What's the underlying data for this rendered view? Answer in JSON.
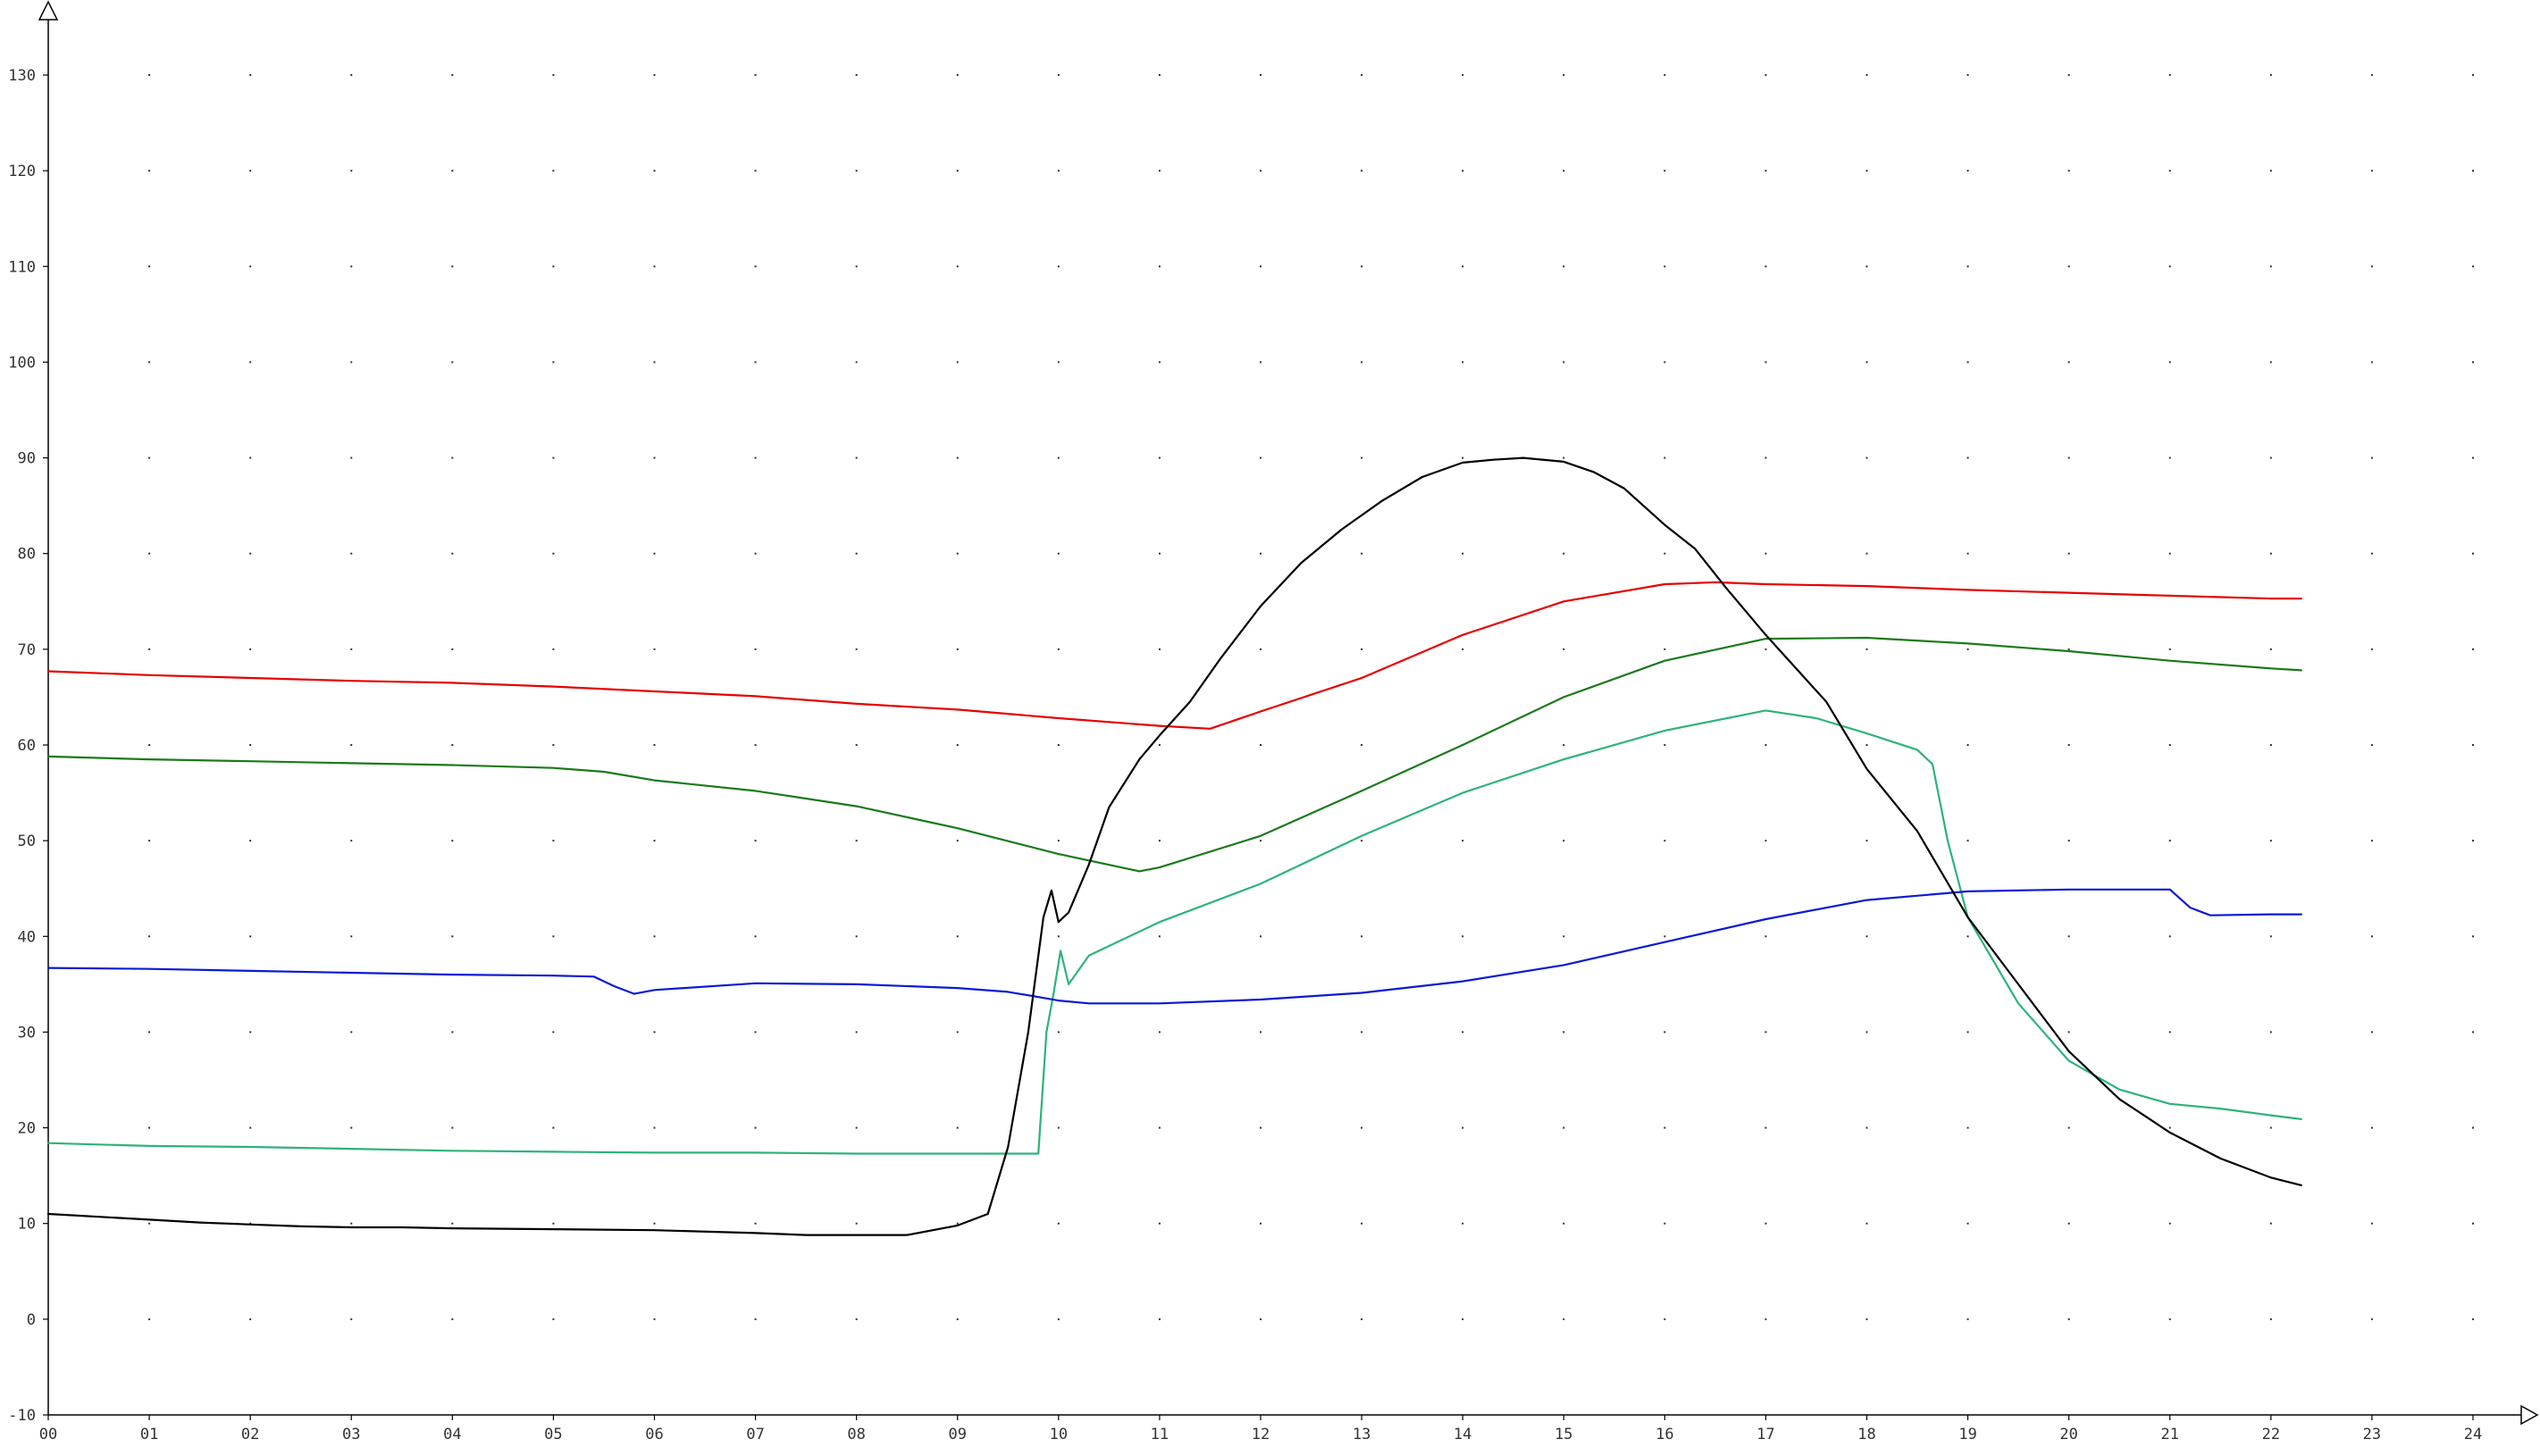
{
  "chart_data": {
    "type": "line",
    "title": "",
    "xlabel": "",
    "ylabel": "",
    "xlim": [
      0,
      24
    ],
    "ylim": [
      -10,
      130
    ],
    "grid": "dotted",
    "legend": "none",
    "x_ticks": [
      "00",
      "01",
      "02",
      "03",
      "04",
      "05",
      "06",
      "07",
      "08",
      "09",
      "10",
      "11",
      "12",
      "13",
      "14",
      "15",
      "16",
      "17",
      "18",
      "19",
      "20",
      "21",
      "22",
      "23",
      "24"
    ],
    "y_ticks": [
      "-10",
      "0",
      "10",
      "20",
      "30",
      "40",
      "50",
      "60",
      "70",
      "80",
      "90",
      "100",
      "110",
      "120",
      "130"
    ],
    "series": [
      {
        "color": "#e60000",
        "points": [
          [
            0,
            67.7
          ],
          [
            1,
            67.3
          ],
          [
            2,
            67.0
          ],
          [
            3,
            66.7
          ],
          [
            4,
            66.5
          ],
          [
            5,
            66.1
          ],
          [
            6,
            65.6
          ],
          [
            7,
            65.1
          ],
          [
            8,
            64.3
          ],
          [
            9,
            63.7
          ],
          [
            10,
            62.8
          ],
          [
            11,
            62.0
          ],
          [
            11.5,
            61.7
          ],
          [
            12,
            63.5
          ],
          [
            13,
            67.0
          ],
          [
            14,
            71.5
          ],
          [
            15,
            75.0
          ],
          [
            16,
            76.8
          ],
          [
            16.5,
            77.0
          ],
          [
            17,
            76.8
          ],
          [
            18,
            76.6
          ],
          [
            19,
            76.2
          ],
          [
            20,
            75.9
          ],
          [
            21,
            75.6
          ],
          [
            22,
            75.3
          ],
          [
            22.3,
            75.3
          ]
        ]
      },
      {
        "color": "#1a7a1a",
        "points": [
          [
            0,
            58.8
          ],
          [
            1,
            58.5
          ],
          [
            2,
            58.3
          ],
          [
            3,
            58.1
          ],
          [
            4,
            57.9
          ],
          [
            5,
            57.6
          ],
          [
            5.5,
            57.2
          ],
          [
            6,
            56.3
          ],
          [
            7,
            55.2
          ],
          [
            8,
            53.6
          ],
          [
            9,
            51.3
          ],
          [
            10,
            48.6
          ],
          [
            10.8,
            46.8
          ],
          [
            11,
            47.2
          ],
          [
            12,
            50.5
          ],
          [
            13,
            55.2
          ],
          [
            14,
            60.0
          ],
          [
            15,
            65.0
          ],
          [
            16,
            68.8
          ],
          [
            17,
            71.1
          ],
          [
            18,
            71.2
          ],
          [
            19,
            70.6
          ],
          [
            20,
            69.8
          ],
          [
            21,
            68.8
          ],
          [
            22,
            68.0
          ],
          [
            22.3,
            67.8
          ]
        ]
      },
      {
        "color": "#2db37a",
        "points": [
          [
            0,
            18.4
          ],
          [
            1,
            18.1
          ],
          [
            2,
            18.0
          ],
          [
            3,
            17.8
          ],
          [
            4,
            17.6
          ],
          [
            5,
            17.5
          ],
          [
            6,
            17.4
          ],
          [
            7,
            17.4
          ],
          [
            8,
            17.3
          ],
          [
            9,
            17.3
          ],
          [
            9.8,
            17.3
          ],
          [
            9.88,
            30.0
          ],
          [
            9.95,
            34.0
          ],
          [
            10.02,
            38.5
          ],
          [
            10.1,
            35.0
          ],
          [
            10.3,
            38.0
          ],
          [
            10.5,
            39.0
          ],
          [
            11,
            41.5
          ],
          [
            12,
            45.5
          ],
          [
            13,
            50.5
          ],
          [
            14,
            55.0
          ],
          [
            15,
            58.5
          ],
          [
            16,
            61.5
          ],
          [
            17,
            63.6
          ],
          [
            17.5,
            62.8
          ],
          [
            18,
            61.2
          ],
          [
            18.5,
            59.5
          ],
          [
            18.65,
            58.0
          ],
          [
            18.8,
            50.0
          ],
          [
            19,
            42.0
          ],
          [
            19.5,
            33.0
          ],
          [
            20,
            27.0
          ],
          [
            20.5,
            24.0
          ],
          [
            21,
            22.5
          ],
          [
            21.5,
            22.0
          ],
          [
            22,
            21.3
          ],
          [
            22.3,
            20.9
          ]
        ]
      },
      {
        "color": "#0a1ad6",
        "points": [
          [
            0,
            36.7
          ],
          [
            1,
            36.6
          ],
          [
            2,
            36.4
          ],
          [
            3,
            36.2
          ],
          [
            4,
            36.0
          ],
          [
            5,
            35.9
          ],
          [
            5.4,
            35.8
          ],
          [
            5.6,
            34.8
          ],
          [
            5.8,
            34.0
          ],
          [
            6,
            34.4
          ],
          [
            7,
            35.1
          ],
          [
            8,
            35.0
          ],
          [
            9,
            34.6
          ],
          [
            9.5,
            34.2
          ],
          [
            10,
            33.3
          ],
          [
            10.3,
            33.0
          ],
          [
            11,
            33.0
          ],
          [
            12,
            33.4
          ],
          [
            13,
            34.1
          ],
          [
            14,
            35.3
          ],
          [
            15,
            37.0
          ],
          [
            16,
            39.4
          ],
          [
            17,
            41.8
          ],
          [
            18,
            43.8
          ],
          [
            19,
            44.7
          ],
          [
            20,
            44.9
          ],
          [
            21,
            44.9
          ],
          [
            21.2,
            43.0
          ],
          [
            21.4,
            42.2
          ],
          [
            22,
            42.3
          ],
          [
            22.3,
            42.3
          ]
        ]
      },
      {
        "color": "#000000",
        "points": [
          [
            0,
            11.0
          ],
          [
            0.5,
            10.7
          ],
          [
            1,
            10.4
          ],
          [
            1.5,
            10.1
          ],
          [
            2,
            9.9
          ],
          [
            2.5,
            9.7
          ],
          [
            3,
            9.6
          ],
          [
            3.5,
            9.6
          ],
          [
            4,
            9.5
          ],
          [
            5,
            9.4
          ],
          [
            6,
            9.3
          ],
          [
            7,
            9.0
          ],
          [
            7.5,
            8.8
          ],
          [
            8,
            8.8
          ],
          [
            8.5,
            8.8
          ],
          [
            9,
            9.8
          ],
          [
            9.3,
            11.0
          ],
          [
            9.5,
            18.0
          ],
          [
            9.7,
            30.0
          ],
          [
            9.85,
            42.0
          ],
          [
            9.93,
            44.8
          ],
          [
            10.0,
            41.5
          ],
          [
            10.1,
            42.5
          ],
          [
            10.3,
            47.5
          ],
          [
            10.5,
            53.5
          ],
          [
            10.8,
            58.5
          ],
          [
            11,
            61.0
          ],
          [
            11.3,
            64.5
          ],
          [
            11.6,
            69.0
          ],
          [
            12,
            74.5
          ],
          [
            12.4,
            79.0
          ],
          [
            12.8,
            82.5
          ],
          [
            13.2,
            85.5
          ],
          [
            13.6,
            88.0
          ],
          [
            14,
            89.5
          ],
          [
            14.3,
            89.8
          ],
          [
            14.6,
            90.0
          ],
          [
            15,
            89.6
          ],
          [
            15.3,
            88.5
          ],
          [
            15.6,
            86.8
          ],
          [
            16,
            83.0
          ],
          [
            16.3,
            80.5
          ],
          [
            16.6,
            76.5
          ],
          [
            17,
            71.5
          ],
          [
            17.3,
            68.0
          ],
          [
            17.6,
            64.5
          ],
          [
            18,
            57.5
          ],
          [
            18.5,
            51.0
          ],
          [
            19,
            42.0
          ],
          [
            19.5,
            35.0
          ],
          [
            20,
            28.0
          ],
          [
            20.5,
            23.0
          ],
          [
            21,
            19.5
          ],
          [
            21.5,
            16.8
          ],
          [
            22,
            14.8
          ],
          [
            22.3,
            14.0
          ]
        ]
      }
    ]
  }
}
